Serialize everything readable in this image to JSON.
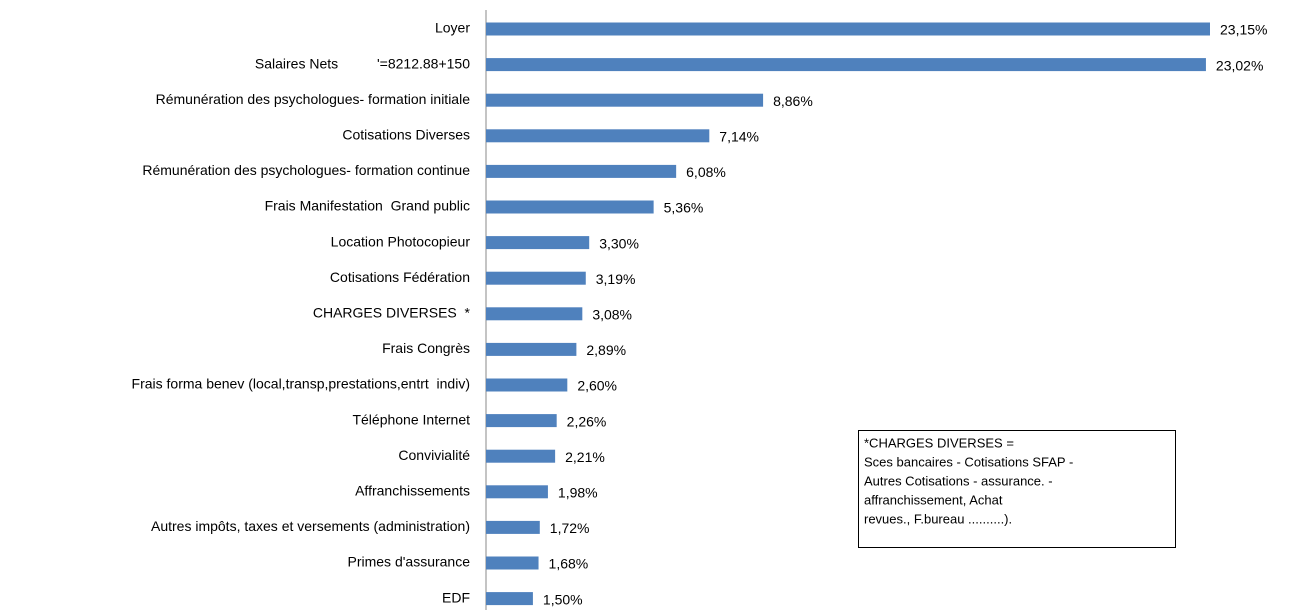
{
  "chart_data": {
    "type": "bar",
    "orientation": "horizontal",
    "color": "#4f81bd",
    "categories": [
      "Loyer",
      "Salaires Nets          '=8212.88+150",
      "Rémunération des psychologues- formation initiale",
      "Cotisations Diverses",
      "Rémunération des psychologues- formation continue",
      "Frais Manifestation  Grand public",
      "Location Photocopieur",
      "Cotisations Fédération",
      "CHARGES DIVERSES  *",
      "Frais Congrès",
      "Frais forma benev (local,transp,prestations,entrt  indiv)",
      "Téléphone Internet",
      "Convivialité",
      "Affranchissements",
      "Autres impôts, taxes et versements (administration)",
      "Primes d'assurance",
      "EDF"
    ],
    "values": [
      23.15,
      23.02,
      8.86,
      7.14,
      6.08,
      5.36,
      3.3,
      3.19,
      3.08,
      2.89,
      2.6,
      2.26,
      2.21,
      1.98,
      1.72,
      1.68,
      1.5
    ],
    "value_labels": [
      "23,15%",
      "23,02%",
      "8,86%",
      "7,14%",
      "6,08%",
      "5,36%",
      "3,30%",
      "3,19%",
      "3,08%",
      "2,89%",
      "2,60%",
      "2,26%",
      "2,21%",
      "1,98%",
      "1,72%",
      "1,68%",
      "1,50%"
    ],
    "annotation": [
      "*CHARGES DIVERSES =",
      "Sces bancaires - Cotisations SFAP -",
      "Autres Cotisations - assurance. -",
      "affranchissement, Achat",
      "revues., F.bureau ..........)."
    ]
  }
}
